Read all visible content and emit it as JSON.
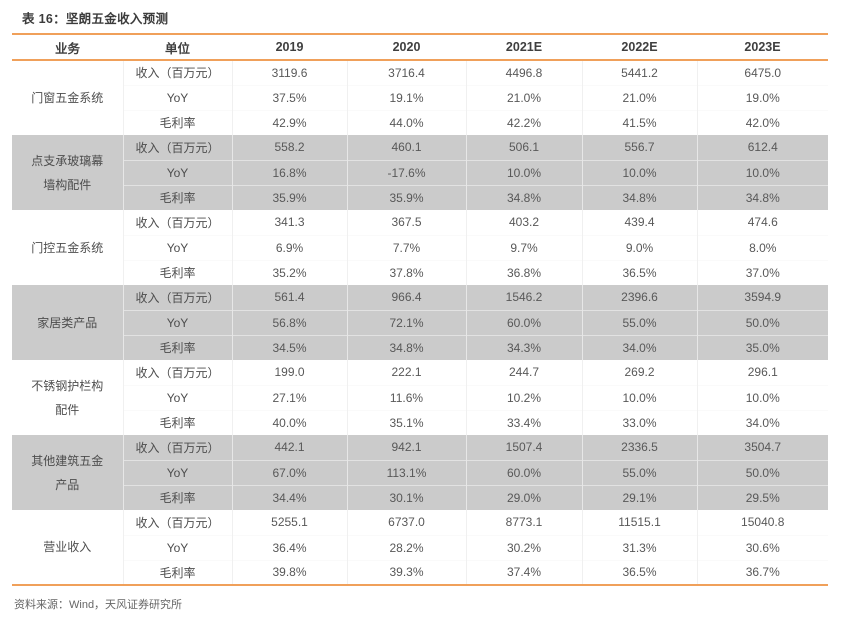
{
  "title": "表 16：坚朗五金收入预测",
  "header": {
    "business": "业务",
    "unit": "单位",
    "years": [
      "2019",
      "2020",
      "2021E",
      "2022E",
      "2023E"
    ]
  },
  "metrics": [
    "收入（百万元）",
    "YoY",
    "毛利率"
  ],
  "sections": [
    {
      "name": "门窗五金系统",
      "shaded": false,
      "rows": [
        [
          "3119.6",
          "3716.4",
          "4496.8",
          "5441.2",
          "6475.0"
        ],
        [
          "37.5%",
          "19.1%",
          "21.0%",
          "21.0%",
          "19.0%"
        ],
        [
          "42.9%",
          "44.0%",
          "42.2%",
          "41.5%",
          "42.0%"
        ]
      ]
    },
    {
      "name": "点支承玻璃幕墙构配件",
      "shaded": true,
      "rows": [
        [
          "558.2",
          "460.1",
          "506.1",
          "556.7",
          "612.4"
        ],
        [
          "16.8%",
          "-17.6%",
          "10.0%",
          "10.0%",
          "10.0%"
        ],
        [
          "35.9%",
          "35.9%",
          "34.8%",
          "34.8%",
          "34.8%"
        ]
      ]
    },
    {
      "name": "门控五金系统",
      "shaded": false,
      "rows": [
        [
          "341.3",
          "367.5",
          "403.2",
          "439.4",
          "474.6"
        ],
        [
          "6.9%",
          "7.7%",
          "9.7%",
          "9.0%",
          "8.0%"
        ],
        [
          "35.2%",
          "37.8%",
          "36.8%",
          "36.5%",
          "37.0%"
        ]
      ]
    },
    {
      "name": "家居类产品",
      "shaded": true,
      "rows": [
        [
          "561.4",
          "966.4",
          "1546.2",
          "2396.6",
          "3594.9"
        ],
        [
          "56.8%",
          "72.1%",
          "60.0%",
          "55.0%",
          "50.0%"
        ],
        [
          "34.5%",
          "34.8%",
          "34.3%",
          "34.0%",
          "35.0%"
        ]
      ]
    },
    {
      "name": "不锈钢护栏构配件",
      "shaded": false,
      "rows": [
        [
          "199.0",
          "222.1",
          "244.7",
          "269.2",
          "296.1"
        ],
        [
          "27.1%",
          "11.6%",
          "10.2%",
          "10.0%",
          "10.0%"
        ],
        [
          "40.0%",
          "35.1%",
          "33.4%",
          "33.0%",
          "34.0%"
        ]
      ]
    },
    {
      "name": "其他建筑五金产品",
      "shaded": true,
      "rows": [
        [
          "442.1",
          "942.1",
          "1507.4",
          "2336.5",
          "3504.7"
        ],
        [
          "67.0%",
          "113.1%",
          "60.0%",
          "55.0%",
          "50.0%"
        ],
        [
          "34.4%",
          "30.1%",
          "29.0%",
          "29.1%",
          "29.5%"
        ]
      ]
    },
    {
      "name": "营业收入",
      "shaded": false,
      "rows": [
        [
          "5255.1",
          "6737.0",
          "8773.1",
          "11515.1",
          "15040.8"
        ],
        [
          "36.4%",
          "28.2%",
          "30.2%",
          "31.3%",
          "30.6%"
        ],
        [
          "39.8%",
          "39.3%",
          "37.4%",
          "36.5%",
          "36.7%"
        ]
      ]
    }
  ],
  "footer": {
    "source": "资料来源：Wind，天风证券研究所"
  },
  "colors": {
    "accent": "#F0A05A",
    "band": "#CBCBCB",
    "text": "#585858"
  }
}
